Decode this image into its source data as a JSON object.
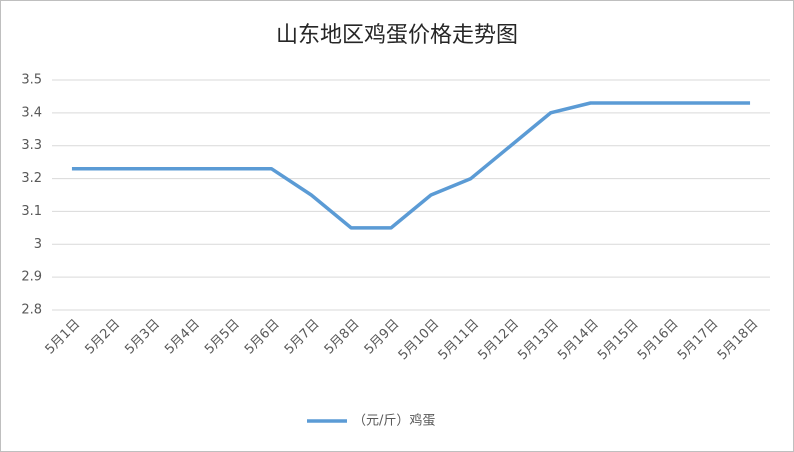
{
  "chart_data": {
    "type": "line",
    "title": "山东地区鸡蛋价格走势图",
    "categories": [
      "5月1日",
      "5月2日",
      "5月3日",
      "5月4日",
      "5月5日",
      "5月6日",
      "5月7日",
      "5月8日",
      "5月9日",
      "5月10日",
      "5月11日",
      "5月12日",
      "5月13日",
      "5月14日",
      "5月15日",
      "5月16日",
      "5月17日",
      "5月18日"
    ],
    "series": [
      {
        "name": "（元/斤）鸡蛋",
        "color": "#5b9bd5",
        "values": [
          3.23,
          3.23,
          3.23,
          3.23,
          3.23,
          3.23,
          3.15,
          3.05,
          3.05,
          3.15,
          3.2,
          3.3,
          3.4,
          3.43,
          3.43,
          3.43,
          3.43,
          3.43
        ]
      }
    ],
    "ylim": [
      2.8,
      3.5
    ],
    "yticks": [
      2.8,
      2.9,
      3,
      3.1,
      3.2,
      3.3,
      3.4,
      3.5
    ],
    "grid": true,
    "legend": "bottom"
  }
}
